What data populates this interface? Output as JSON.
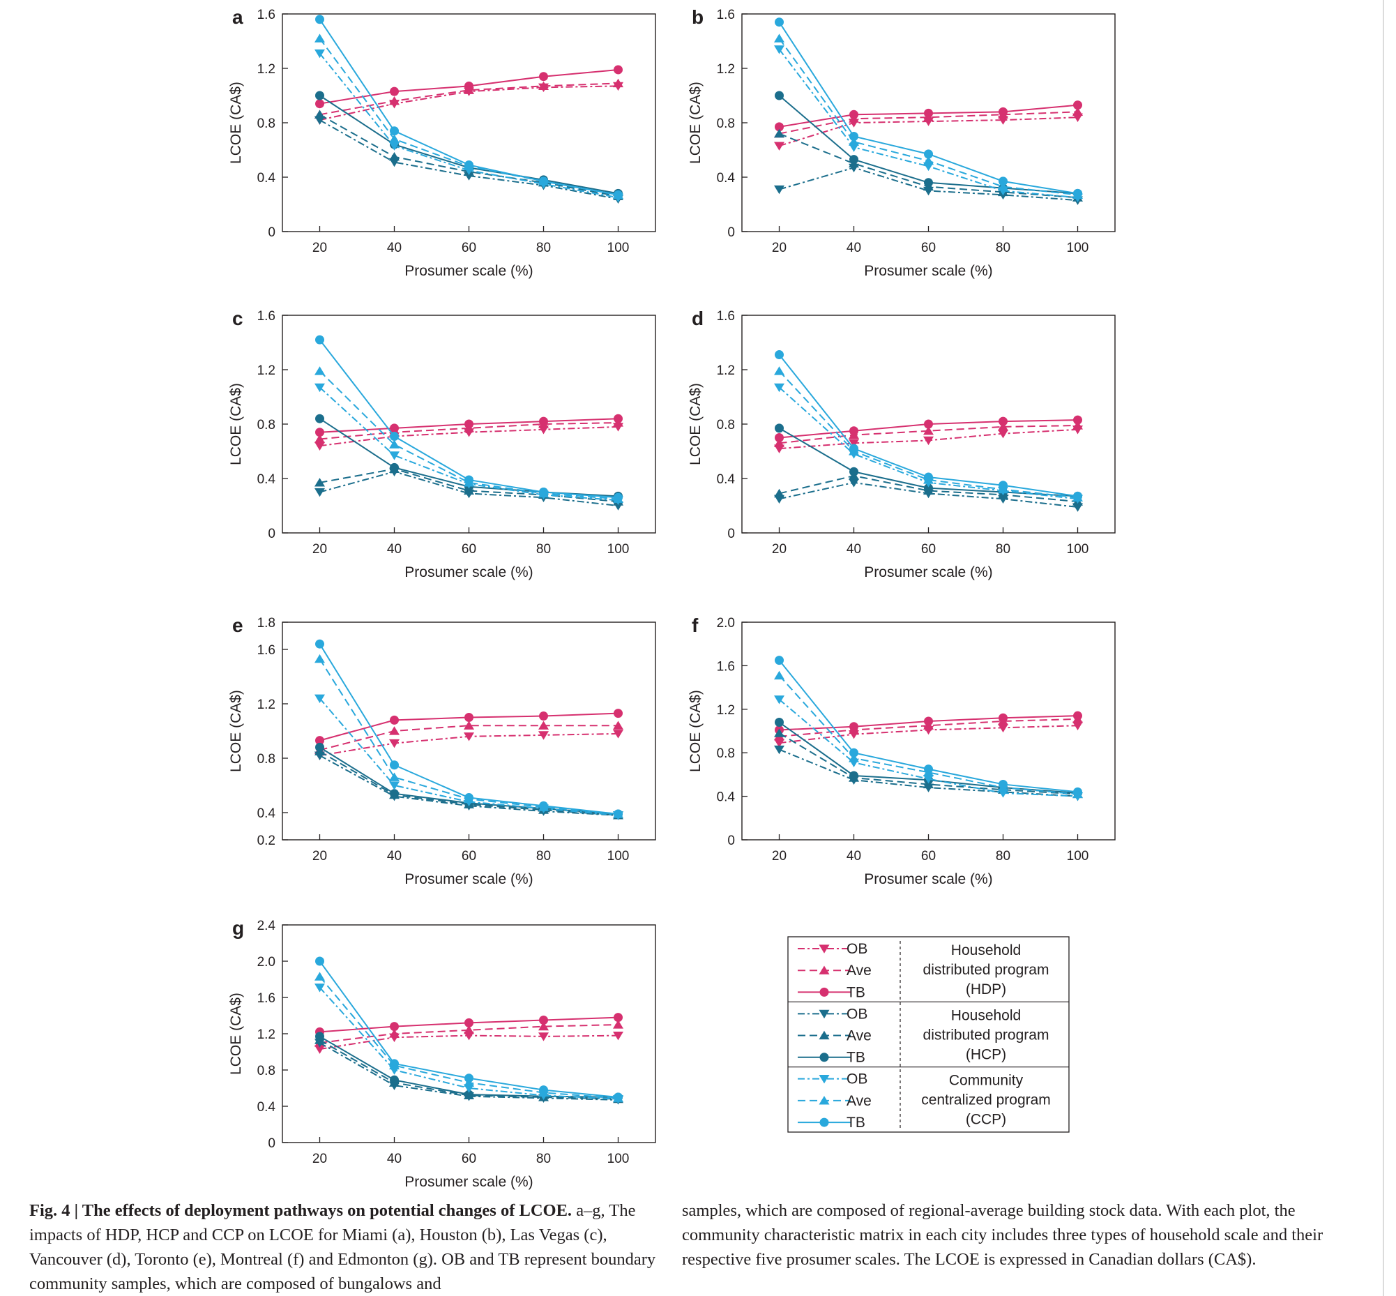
{
  "colors": {
    "hdp": "#d6306f",
    "hcp": "#1b6e8c",
    "ccp": "#29a8dc",
    "axis": "#231f20"
  },
  "chart_data": [
    {
      "panel": "a",
      "type": "line",
      "xlabel": "Prosumer scale (%)",
      "ylabel": "LCOE (CA$)",
      "x": [
        20,
        40,
        60,
        80,
        100
      ],
      "ylim": [
        0,
        1.6
      ],
      "yticks": [
        "0",
        "0.4",
        "0.8",
        "1.2",
        "1.6"
      ],
      "series": [
        {
          "group": "HDP",
          "name": "OB",
          "values": [
            0.82,
            0.94,
            1.03,
            1.06,
            1.07
          ]
        },
        {
          "group": "HDP",
          "name": "Ave",
          "values": [
            0.86,
            0.96,
            1.04,
            1.07,
            1.09
          ]
        },
        {
          "group": "HDP",
          "name": "TB",
          "values": [
            0.94,
            1.03,
            1.07,
            1.14,
            1.19
          ]
        },
        {
          "group": "HCP",
          "name": "OB",
          "values": [
            0.82,
            0.51,
            0.41,
            0.34,
            0.24
          ]
        },
        {
          "group": "HCP",
          "name": "Ave",
          "values": [
            0.86,
            0.55,
            0.44,
            0.36,
            0.26
          ]
        },
        {
          "group": "HCP",
          "name": "TB",
          "values": [
            1.0,
            0.64,
            0.47,
            0.38,
            0.28
          ]
        },
        {
          "group": "CCP",
          "name": "OB",
          "values": [
            1.31,
            0.63,
            0.45,
            0.35,
            0.25
          ]
        },
        {
          "group": "CCP",
          "name": "Ave",
          "values": [
            1.42,
            0.68,
            0.48,
            0.37,
            0.27
          ]
        },
        {
          "group": "CCP",
          "name": "TB",
          "values": [
            1.56,
            0.74,
            0.49,
            0.37,
            0.27
          ]
        }
      ]
    },
    {
      "panel": "b",
      "type": "line",
      "xlabel": "Prosumer scale (%)",
      "ylabel": "LCOE (CA$)",
      "x": [
        20,
        40,
        60,
        80,
        100
      ],
      "ylim": [
        0,
        1.6
      ],
      "yticks": [
        "0",
        "0.4",
        "0.8",
        "1.2",
        "1.6"
      ],
      "series": [
        {
          "group": "HDP",
          "name": "OB",
          "values": [
            0.63,
            0.8,
            0.81,
            0.82,
            0.84
          ]
        },
        {
          "group": "HDP",
          "name": "Ave",
          "values": [
            0.72,
            0.83,
            0.84,
            0.86,
            0.88
          ]
        },
        {
          "group": "HDP",
          "name": "TB",
          "values": [
            0.77,
            0.86,
            0.87,
            0.88,
            0.93
          ]
        },
        {
          "group": "HCP",
          "name": "OB",
          "values": [
            0.31,
            0.47,
            0.3,
            0.27,
            0.23
          ]
        },
        {
          "group": "HCP",
          "name": "Ave",
          "values": [
            0.72,
            0.5,
            0.33,
            0.29,
            0.25
          ]
        },
        {
          "group": "HCP",
          "name": "TB",
          "values": [
            1.0,
            0.53,
            0.36,
            0.32,
            0.28
          ]
        },
        {
          "group": "CCP",
          "name": "OB",
          "values": [
            1.34,
            0.62,
            0.48,
            0.3,
            0.25
          ]
        },
        {
          "group": "CCP",
          "name": "Ave",
          "values": [
            1.42,
            0.66,
            0.52,
            0.33,
            0.27
          ]
        },
        {
          "group": "CCP",
          "name": "TB",
          "values": [
            1.54,
            0.7,
            0.57,
            0.37,
            0.28
          ]
        }
      ]
    },
    {
      "panel": "c",
      "type": "line",
      "xlabel": "Prosumer scale (%)",
      "ylabel": "LCOE (CA$)",
      "x": [
        20,
        40,
        60,
        80,
        100
      ],
      "ylim": [
        0,
        1.6
      ],
      "yticks": [
        "0",
        "0.4",
        "0.8",
        "1.2",
        "1.6"
      ],
      "series": [
        {
          "group": "HDP",
          "name": "OB",
          "values": [
            0.64,
            0.71,
            0.74,
            0.76,
            0.78
          ]
        },
        {
          "group": "HDP",
          "name": "Ave",
          "values": [
            0.69,
            0.74,
            0.77,
            0.8,
            0.81
          ]
        },
        {
          "group": "HDP",
          "name": "TB",
          "values": [
            0.74,
            0.77,
            0.8,
            0.82,
            0.84
          ]
        },
        {
          "group": "HCP",
          "name": "OB",
          "values": [
            0.3,
            0.45,
            0.29,
            0.26,
            0.2
          ]
        },
        {
          "group": "HCP",
          "name": "Ave",
          "values": [
            0.37,
            0.47,
            0.31,
            0.28,
            0.23
          ]
        },
        {
          "group": "HCP",
          "name": "TB",
          "values": [
            0.84,
            0.48,
            0.34,
            0.3,
            0.27
          ]
        },
        {
          "group": "CCP",
          "name": "OB",
          "values": [
            1.07,
            0.57,
            0.36,
            0.28,
            0.24
          ]
        },
        {
          "group": "CCP",
          "name": "Ave",
          "values": [
            1.19,
            0.65,
            0.37,
            0.29,
            0.25
          ]
        },
        {
          "group": "CCP",
          "name": "TB",
          "values": [
            1.42,
            0.71,
            0.39,
            0.3,
            0.26
          ]
        }
      ]
    },
    {
      "panel": "d",
      "type": "line",
      "xlabel": "Prosumer scale (%)",
      "ylabel": "LCOE (CA$)",
      "x": [
        20,
        40,
        60,
        80,
        100
      ],
      "ylim": [
        0,
        1.6
      ],
      "yticks": [
        "0",
        "0.4",
        "0.8",
        "1.2",
        "1.6"
      ],
      "series": [
        {
          "group": "HDP",
          "name": "OB",
          "values": [
            0.62,
            0.66,
            0.68,
            0.73,
            0.76
          ]
        },
        {
          "group": "HDP",
          "name": "Ave",
          "values": [
            0.66,
            0.72,
            0.75,
            0.78,
            0.79
          ]
        },
        {
          "group": "HDP",
          "name": "TB",
          "values": [
            0.7,
            0.75,
            0.8,
            0.82,
            0.83
          ]
        },
        {
          "group": "HCP",
          "name": "OB",
          "values": [
            0.25,
            0.37,
            0.29,
            0.25,
            0.19
          ]
        },
        {
          "group": "HCP",
          "name": "Ave",
          "values": [
            0.29,
            0.42,
            0.31,
            0.28,
            0.23
          ]
        },
        {
          "group": "HCP",
          "name": "TB",
          "values": [
            0.77,
            0.45,
            0.33,
            0.3,
            0.27
          ]
        },
        {
          "group": "CCP",
          "name": "OB",
          "values": [
            1.07,
            0.58,
            0.37,
            0.31,
            0.25
          ]
        },
        {
          "group": "CCP",
          "name": "Ave",
          "values": [
            1.19,
            0.6,
            0.39,
            0.32,
            0.26
          ]
        },
        {
          "group": "CCP",
          "name": "TB",
          "values": [
            1.31,
            0.62,
            0.41,
            0.35,
            0.27
          ]
        }
      ]
    },
    {
      "panel": "e",
      "type": "line",
      "xlabel": "Prosumer scale (%)",
      "ylabel": "LCOE (CA$)",
      "x": [
        20,
        40,
        60,
        80,
        100
      ],
      "ylim": [
        0.2,
        1.8
      ],
      "yticks": [
        "0.2",
        "0.4",
        "0.8",
        "1.2",
        "1.6",
        "1.8"
      ],
      "series": [
        {
          "group": "HDP",
          "name": "OB",
          "values": [
            0.82,
            0.91,
            0.96,
            0.97,
            0.98
          ]
        },
        {
          "group": "HDP",
          "name": "Ave",
          "values": [
            0.86,
            1.0,
            1.04,
            1.04,
            1.04
          ]
        },
        {
          "group": "HDP",
          "name": "TB",
          "values": [
            0.93,
            1.08,
            1.1,
            1.11,
            1.13
          ]
        },
        {
          "group": "HCP",
          "name": "OB",
          "values": [
            0.82,
            0.52,
            0.45,
            0.41,
            0.38
          ]
        },
        {
          "group": "HCP",
          "name": "Ave",
          "values": [
            0.85,
            0.53,
            0.46,
            0.42,
            0.38
          ]
        },
        {
          "group": "HCP",
          "name": "TB",
          "values": [
            0.88,
            0.54,
            0.47,
            0.43,
            0.39
          ]
        },
        {
          "group": "CCP",
          "name": "OB",
          "values": [
            1.24,
            0.6,
            0.48,
            0.43,
            0.38
          ]
        },
        {
          "group": "CCP",
          "name": "Ave",
          "values": [
            1.53,
            0.66,
            0.5,
            0.44,
            0.39
          ]
        },
        {
          "group": "CCP",
          "name": "TB",
          "values": [
            1.64,
            0.75,
            0.51,
            0.45,
            0.39
          ]
        }
      ]
    },
    {
      "panel": "f",
      "type": "line",
      "xlabel": "Prosumer scale (%)",
      "ylabel": "LCOE (CA$)",
      "x": [
        20,
        40,
        60,
        80,
        100
      ],
      "ylim": [
        0,
        2.0
      ],
      "yticks": [
        "0",
        "0.4",
        "0.8",
        "1.2",
        "1.6",
        "2.0"
      ],
      "series": [
        {
          "group": "HDP",
          "name": "OB",
          "values": [
            0.89,
            0.97,
            1.01,
            1.03,
            1.05
          ]
        },
        {
          "group": "HDP",
          "name": "Ave",
          "values": [
            0.95,
            1.01,
            1.05,
            1.09,
            1.11
          ]
        },
        {
          "group": "HDP",
          "name": "TB",
          "values": [
            1.01,
            1.04,
            1.09,
            1.12,
            1.14
          ]
        },
        {
          "group": "HCP",
          "name": "OB",
          "values": [
            0.83,
            0.55,
            0.48,
            0.44,
            0.4
          ]
        },
        {
          "group": "HCP",
          "name": "Ave",
          "values": [
            0.98,
            0.57,
            0.51,
            0.46,
            0.42
          ]
        },
        {
          "group": "HCP",
          "name": "TB",
          "values": [
            1.08,
            0.59,
            0.55,
            0.48,
            0.43
          ]
        },
        {
          "group": "CCP",
          "name": "OB",
          "values": [
            1.29,
            0.71,
            0.56,
            0.43,
            0.4
          ]
        },
        {
          "group": "CCP",
          "name": "Ave",
          "values": [
            1.51,
            0.75,
            0.62,
            0.48,
            0.42
          ]
        },
        {
          "group": "CCP",
          "name": "TB",
          "values": [
            1.65,
            0.8,
            0.65,
            0.51,
            0.44
          ]
        }
      ]
    },
    {
      "panel": "g",
      "type": "line",
      "xlabel": "Prosumer scale (%)",
      "ylabel": "LCOE (CA$)",
      "x": [
        20,
        40,
        60,
        80,
        100
      ],
      "ylim": [
        0,
        2.4
      ],
      "yticks": [
        "0",
        "0.4",
        "0.8",
        "1.2",
        "1.6",
        "2.0",
        "2.4"
      ],
      "series": [
        {
          "group": "HDP",
          "name": "OB",
          "values": [
            1.03,
            1.16,
            1.18,
            1.17,
            1.18
          ]
        },
        {
          "group": "HDP",
          "name": "Ave",
          "values": [
            1.1,
            1.2,
            1.24,
            1.28,
            1.3
          ]
        },
        {
          "group": "HDP",
          "name": "TB",
          "values": [
            1.22,
            1.28,
            1.32,
            1.35,
            1.38
          ]
        },
        {
          "group": "HCP",
          "name": "OB",
          "values": [
            1.1,
            0.63,
            0.51,
            0.49,
            0.47
          ]
        },
        {
          "group": "HCP",
          "name": "Ave",
          "values": [
            1.13,
            0.66,
            0.52,
            0.5,
            0.48
          ]
        },
        {
          "group": "HCP",
          "name": "TB",
          "values": [
            1.17,
            0.69,
            0.53,
            0.51,
            0.5
          ]
        },
        {
          "group": "CCP",
          "name": "OB",
          "values": [
            1.71,
            0.8,
            0.6,
            0.52,
            0.48
          ]
        },
        {
          "group": "CCP",
          "name": "Ave",
          "values": [
            1.83,
            0.85,
            0.66,
            0.55,
            0.49
          ]
        },
        {
          "group": "CCP",
          "name": "TB",
          "values": [
            2.0,
            0.87,
            0.71,
            0.58,
            0.5
          ]
        }
      ]
    }
  ],
  "legend": {
    "groups": [
      {
        "key": "HDP",
        "items": [
          "OB",
          "Ave",
          "TB"
        ],
        "desc": [
          "Household",
          "distributed program",
          "(HDP)"
        ]
      },
      {
        "key": "HCP",
        "items": [
          "OB",
          "Ave",
          "TB"
        ],
        "desc": [
          "Household",
          "distributed program",
          "(HCP)"
        ]
      },
      {
        "key": "CCP",
        "items": [
          "OB",
          "Ave",
          "TB"
        ],
        "desc": [
          "Community",
          "centralized program",
          "(CCP)"
        ]
      }
    ]
  },
  "caption": {
    "title": "Fig. 4 | The effects of deployment pathways on potential changes of LCOE.",
    "left_text": "a–g, The impacts of HDP, HCP and CCP on LCOE for Miami (a), Houston (b), Las Vegas (c), Vancouver (d), Toronto (e), Montreal (f) and Edmonton (g). OB and TB represent boundary community samples, which are composed of bungalows and",
    "right_text": "samples, which are composed of regional-average building stock data. With each plot, the community characteristic matrix in each city includes three types of household scale and their respective five prosumer scales. The LCOE is expressed in Canadian dollars (CA$)."
  }
}
